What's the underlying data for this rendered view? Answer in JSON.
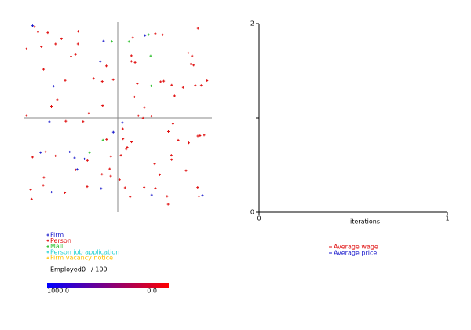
{
  "simulation": {
    "legend": [
      {
        "name": "Firm",
        "color": "#1a1acc"
      },
      {
        "name": "Person",
        "color": "#e01010"
      },
      {
        "name": "Mall",
        "color": "#30c030"
      },
      {
        "name": "Person job application",
        "color": "#20d0d0"
      },
      {
        "name": "Firm vacancy notice",
        "color": "#ffc000"
      }
    ],
    "employed_label": "Employed:",
    "employed": 0,
    "employed_total": "/ 100",
    "scale_labels": [
      "1000.0",
      "0.0"
    ]
  },
  "plot": {
    "x_label": "iterations",
    "xlim": [
      0,
      1
    ],
    "xticks": [
      0,
      1
    ],
    "ylim": [
      0,
      2
    ],
    "yticks": [
      0,
      2
    ],
    "series": [
      {
        "name": "Average wage",
        "color": "#e01010",
        "values": []
      },
      {
        "name": "Average price",
        "color": "#1a1acc",
        "values": []
      }
    ]
  }
}
